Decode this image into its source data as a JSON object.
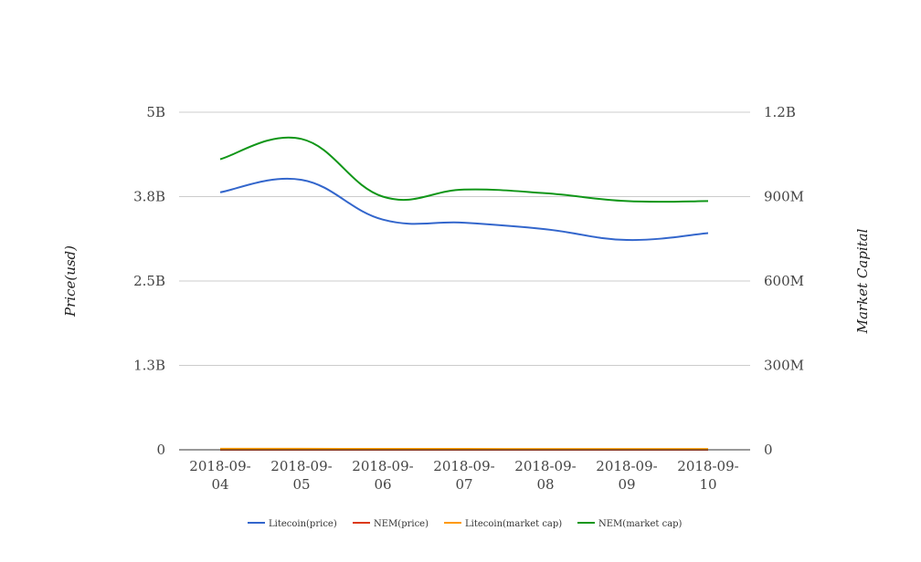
{
  "chart_data": {
    "type": "line",
    "title": "",
    "x": [
      "2018-09-04",
      "2018-09-05",
      "2018-09-06",
      "2018-09-07",
      "2018-09-08",
      "2018-09-09",
      "2018-09-10"
    ],
    "x_tick_labels": [
      [
        "2018-09-",
        "04"
      ],
      [
        "2018-09-",
        "05"
      ],
      [
        "2018-09-",
        "06"
      ],
      [
        "2018-09-",
        "07"
      ],
      [
        "2018-09-",
        "08"
      ],
      [
        "2018-09-",
        "09"
      ],
      [
        "2018-09-",
        "10"
      ]
    ],
    "y_left": {
      "label": "Price(usd)",
      "range": [
        0,
        5000000000
      ],
      "ticks": [
        0,
        1250000000,
        2500000000,
        3750000000,
        5000000000
      ],
      "tick_labels": [
        "0",
        "1.3B",
        "2.5B",
        "3.8B",
        "5B"
      ]
    },
    "y_right": {
      "label": "Market Capital",
      "range": [
        0,
        1200000000
      ],
      "ticks": [
        0,
        300000000,
        600000000,
        900000000,
        1200000000
      ],
      "tick_labels": [
        "0",
        "300M",
        "600M",
        "900M",
        "1.2B"
      ]
    },
    "grid": true,
    "legend_position": "bottom",
    "series": [
      {
        "name": "Litecoin(price)",
        "color": "#3366cc",
        "axis": "left",
        "values": [
          3814000000,
          3998000000,
          3410000000,
          3363000000,
          3267000000,
          3108000000,
          3209000000
        ]
      },
      {
        "name": "NEM(price)",
        "color": "#dc3912",
        "axis": "left",
        "values": [
          0.1,
          0.1,
          0.09,
          0.09,
          0.09,
          0.09,
          0.09
        ]
      },
      {
        "name": "Litecoin(market cap)",
        "color": "#ff9900",
        "axis": "right",
        "values": [
          3500000,
          3650000,
          3150000,
          3100000,
          3000000,
          2850000,
          2950000
        ]
      },
      {
        "name": "NEM(market cap)",
        "color": "#109618",
        "axis": "right",
        "values": [
          1033000000,
          1105000000,
          900000000,
          925000000,
          912000000,
          884000000,
          884000000
        ]
      }
    ]
  }
}
